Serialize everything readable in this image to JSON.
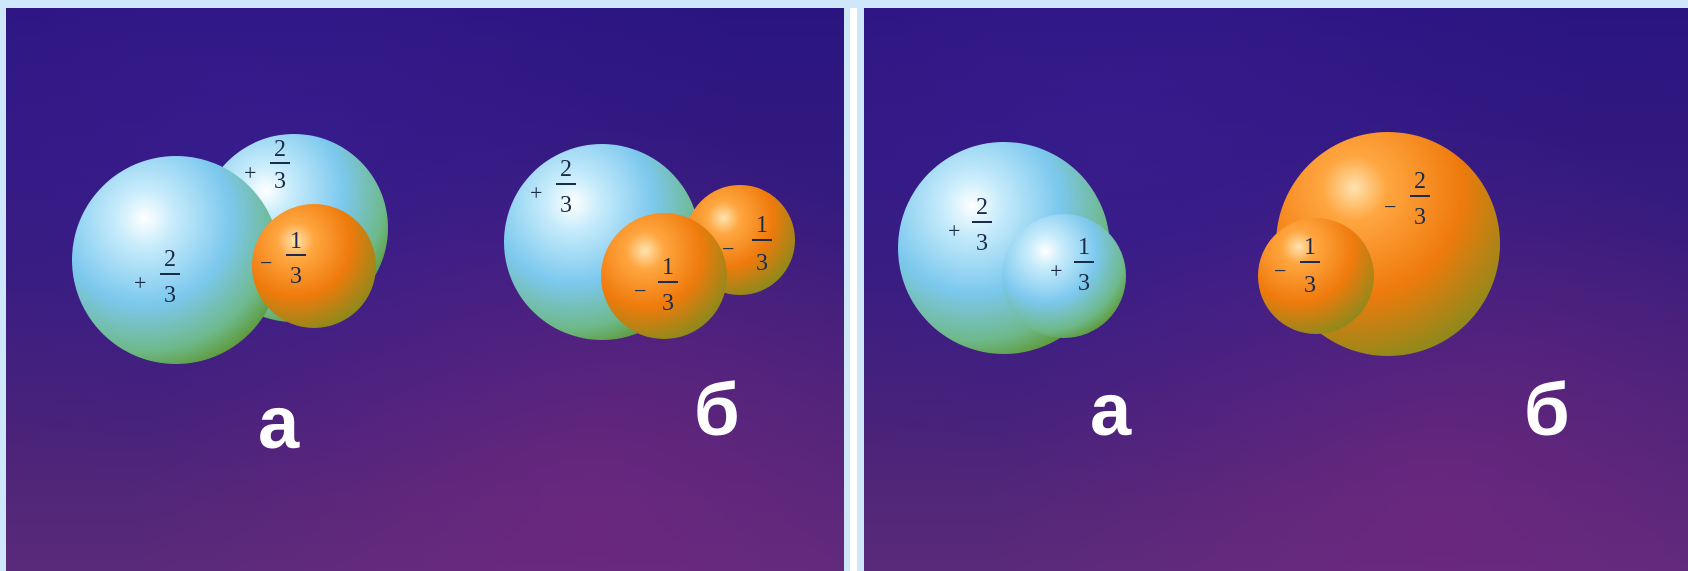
{
  "panels": [
    {
      "models": [
        {
          "letter": "а",
          "charges": [
            {
              "sign": "+",
              "num": "2",
              "den": "3"
            },
            {
              "sign": "+",
              "num": "2",
              "den": "3"
            },
            {
              "sign": "−",
              "num": "1",
              "den": "3"
            }
          ]
        },
        {
          "letter": "б",
          "charges": [
            {
              "sign": "+",
              "num": "2",
              "den": "3"
            },
            {
              "sign": "−",
              "num": "1",
              "den": "3"
            },
            {
              "sign": "−",
              "num": "1",
              "den": "3"
            }
          ]
        }
      ]
    },
    {
      "models": [
        {
          "letter": "а",
          "charges": [
            {
              "sign": "+",
              "num": "2",
              "den": "3"
            },
            {
              "sign": "+",
              "num": "1",
              "den": "3"
            }
          ]
        },
        {
          "letter": "б",
          "charges": [
            {
              "sign": "−",
              "num": "2",
              "den": "3"
            },
            {
              "sign": "−",
              "num": "1",
              "den": "3"
            }
          ]
        }
      ]
    }
  ],
  "colors": {
    "positive_quark": "#8fd3f2",
    "negative_quark": "#f07a10",
    "background": "#2e177c"
  }
}
